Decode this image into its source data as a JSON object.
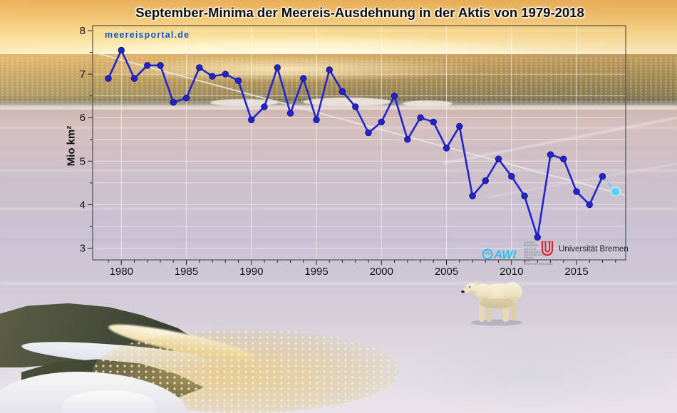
{
  "page": {
    "title": "September-Minima der Meereis-Ausdehnung in der Aktis von 1979-2018",
    "watermark": "meereisportal.de"
  },
  "logos": {
    "awi": {
      "name": "AWI",
      "accent": "#35bde8",
      "small_text": [
        "ALFRED-WEGENER-INSTITUT",
        "HELMHOLTZ-ZENTRUM FUR POLAR-",
        "UND MEERESFORSCHUNG"
      ]
    },
    "uni_bremen": {
      "label": "Universität Bremen",
      "accent": "#d8232a"
    }
  },
  "chart_data": {
    "type": "line",
    "title": "September-Minima der Meereis-Ausdehnung in der Aktis von 1979-2018",
    "xlabel": "",
    "ylabel": "Mio km²",
    "xlim": [
      1978,
      2019
    ],
    "ylim": [
      2.7,
      8.1
    ],
    "grid": true,
    "grid_color": "#ffffff",
    "xticks": [
      1980,
      1985,
      1990,
      1995,
      2000,
      2005,
      2010,
      2015
    ],
    "yticks": [
      3,
      4,
      5,
      6,
      7,
      8
    ],
    "series_observed": {
      "color": "#2323cf",
      "x": [
        1979,
        1980,
        1981,
        1982,
        1983,
        1984,
        1985,
        1986,
        1987,
        1988,
        1989,
        1990,
        1991,
        1992,
        1993,
        1994,
        1995,
        1996,
        1997,
        1998,
        1999,
        2000,
        2001,
        2002,
        2003,
        2004,
        2005,
        2006,
        2007,
        2008,
        2009,
        2010,
        2011,
        2012,
        2013,
        2014,
        2015,
        2016,
        2017
      ],
      "values": [
        6.9,
        7.55,
        6.9,
        7.2,
        7.2,
        6.35,
        6.45,
        7.15,
        6.95,
        7.0,
        6.85,
        5.95,
        6.25,
        7.15,
        6.1,
        6.9,
        5.95,
        7.1,
        6.6,
        6.25,
        5.65,
        5.9,
        6.5,
        5.5,
        6.0,
        5.9,
        5.3,
        5.8,
        4.2,
        4.55,
        5.05,
        4.65,
        4.2,
        3.25,
        5.15,
        5.05,
        4.3,
        4.0,
        4.65
      ]
    },
    "series_current": {
      "color": "#55d2f6",
      "line_style": "dashed",
      "x": [
        2017,
        2018
      ],
      "values": [
        4.65,
        4.3
      ]
    },
    "trend_line": {
      "x1": 1978,
      "v1": 7.49,
      "x2": 2018.7,
      "v2": 4.22,
      "color": "#e9e9e9"
    }
  }
}
